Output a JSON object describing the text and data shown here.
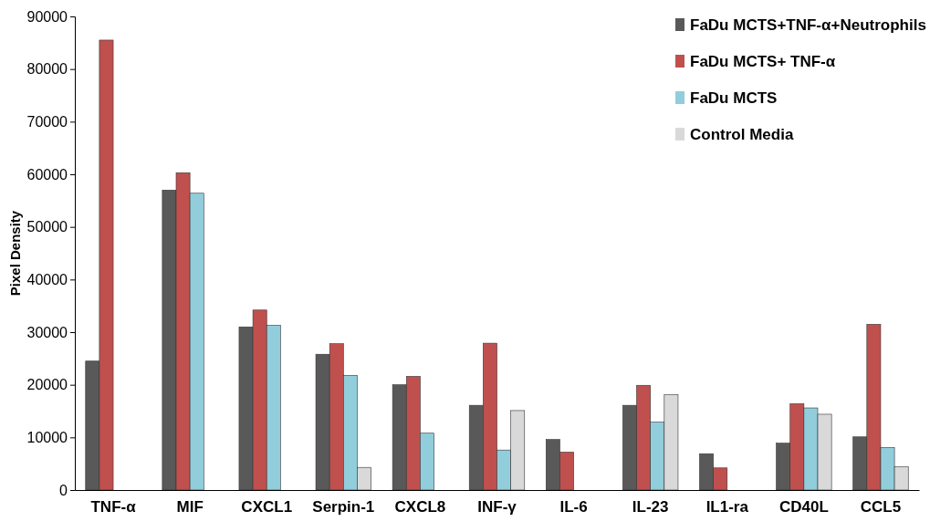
{
  "chart_data": {
    "type": "bar",
    "ylabel": "Pixel Density",
    "categories": [
      "TNF-α",
      "MIF",
      "CXCL1",
      "Serpin-1",
      "CXCL8",
      "INF-γ",
      "IL-6",
      "IL-23",
      "IL1-ra",
      "CD40L",
      "CCL5"
    ],
    "series": [
      {
        "name": "FaDu MCTS+TNF-α+Neutrophils",
        "color": "#595959",
        "values": [
          24500,
          57000,
          31000,
          25800,
          20000,
          16100,
          9600,
          16100,
          6900,
          8900,
          10100
        ]
      },
      {
        "name": "FaDu MCTS+ TNF-α",
        "color": "#c0504d",
        "values": [
          85500,
          60300,
          34200,
          27800,
          21600,
          27900,
          7200,
          19900,
          4200,
          16400,
          31500
        ]
      },
      {
        "name": "FaDu MCTS",
        "color": "#92cddc",
        "values": [
          null,
          56400,
          31300,
          21800,
          10800,
          7600,
          null,
          12900,
          null,
          15600,
          8100
        ]
      },
      {
        "name": "Control Media",
        "color": "#d9d9d9",
        "values": [
          null,
          null,
          null,
          4300,
          null,
          15100,
          null,
          18100,
          null,
          14400,
          4400
        ]
      }
    ],
    "ylim": [
      0,
      90000
    ],
    "yticks": [
      0,
      10000,
      20000,
      30000,
      40000,
      50000,
      60000,
      70000,
      80000,
      90000
    ],
    "grid": false,
    "legend": "top right"
  }
}
